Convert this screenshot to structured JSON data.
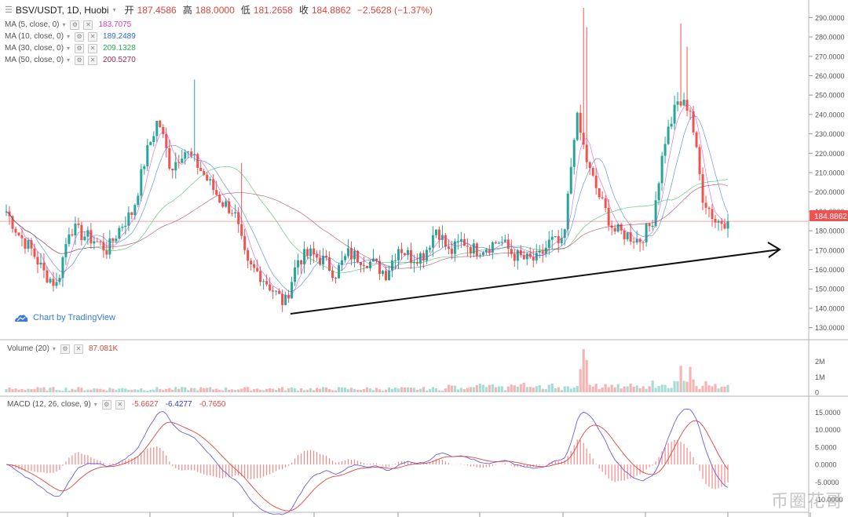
{
  "header": {
    "symbol": "BSV/USDT, 1D, Huobi",
    "open_label": "开",
    "open": "187.4586",
    "high_label": "高",
    "high": "188.0000",
    "low_label": "低",
    "low": "181.2658",
    "close_label": "收",
    "close": "184.8862",
    "change": "−2.5628 (−1.37%)"
  },
  "ma": [
    {
      "label": "MA (5, close, 0)",
      "value": "183.7075",
      "color": "#d33cc7"
    },
    {
      "label": "MA (10, close, 0)",
      "value": "189.2489",
      "color": "#2f6bd6"
    },
    {
      "label": "MA (30, close, 0)",
      "value": "209.1328",
      "color": "#26b34e"
    },
    {
      "label": "MA (50, close, 0)",
      "value": "200.5270",
      "color": "#a4254f"
    }
  ],
  "brand": "Chart by TradingView",
  "last_price_label": "184.8862",
  "volume_panel": {
    "label": "Volume (20)",
    "value": "87.081K"
  },
  "macd_panel": {
    "label": "MACD (12, 26, close, 9)",
    "v1": "-5.6627",
    "v2": "-6.4277",
    "v3": "-0.7650"
  },
  "watermark": "币圈花哥",
  "colors": {
    "up": "#26a69a",
    "down": "#ef5350",
    "accent": "#e0453f"
  },
  "chart_data": [
    {
      "type": "candlestick",
      "title": "BSV/USDT, 1D, Huobi",
      "x": [
        0,
        10,
        20,
        30,
        40,
        50,
        60,
        70,
        80,
        90,
        100,
        110,
        120,
        130,
        140,
        150,
        160,
        170,
        180,
        190,
        200,
        210,
        220,
        230,
        240,
        250,
        260,
        270,
        280,
        290
      ],
      "close_trend": [
        190,
        178,
        170,
        158,
        152,
        182,
        178,
        175,
        170,
        182,
        190,
        218,
        238,
        212,
        222,
        215,
        205,
        195,
        190,
        162,
        158,
        150,
        142,
        165,
        168,
        165,
        158,
        168,
        166,
        163
      ],
      "close_trend_2": [
        158,
        172,
        166,
        168,
        182,
        168,
        175,
        170,
        172,
        175,
        168,
        165,
        165,
        175,
        172,
        240,
        212,
        195,
        180,
        178,
        175,
        184,
        226,
        246,
        244,
        198,
        185,
        184.8862
      ],
      "ylim": [
        125,
        295
      ],
      "yticks": [
        "290.0000",
        "280.0000",
        "270.0000",
        "260.0000",
        "250.0000",
        "240.0000",
        "230.0000",
        "220.0000",
        "210.0000",
        "200.0000",
        "190.0000",
        "180.0000",
        "170.0000",
        "160.0000",
        "150.0000",
        "140.0000",
        "130.0000"
      ],
      "trendline": [
        [
          138,
          365
        ],
        [
          325,
          165
        ]
      ],
      "last_price": 184.8862
    },
    {
      "type": "bar",
      "title": "Volume (20)",
      "yticks": [
        "2M",
        "1M",
        "0"
      ],
      "ylim": [
        0,
        2800000
      ]
    },
    {
      "type": "line",
      "title": "MACD (12, 26, close, 9)",
      "yticks": [
        "15.0000",
        "10.0000",
        "5.0000",
        "0.0000",
        "-5.0000",
        "-10.0000"
      ],
      "ylim": [
        -13,
        18
      ]
    }
  ]
}
